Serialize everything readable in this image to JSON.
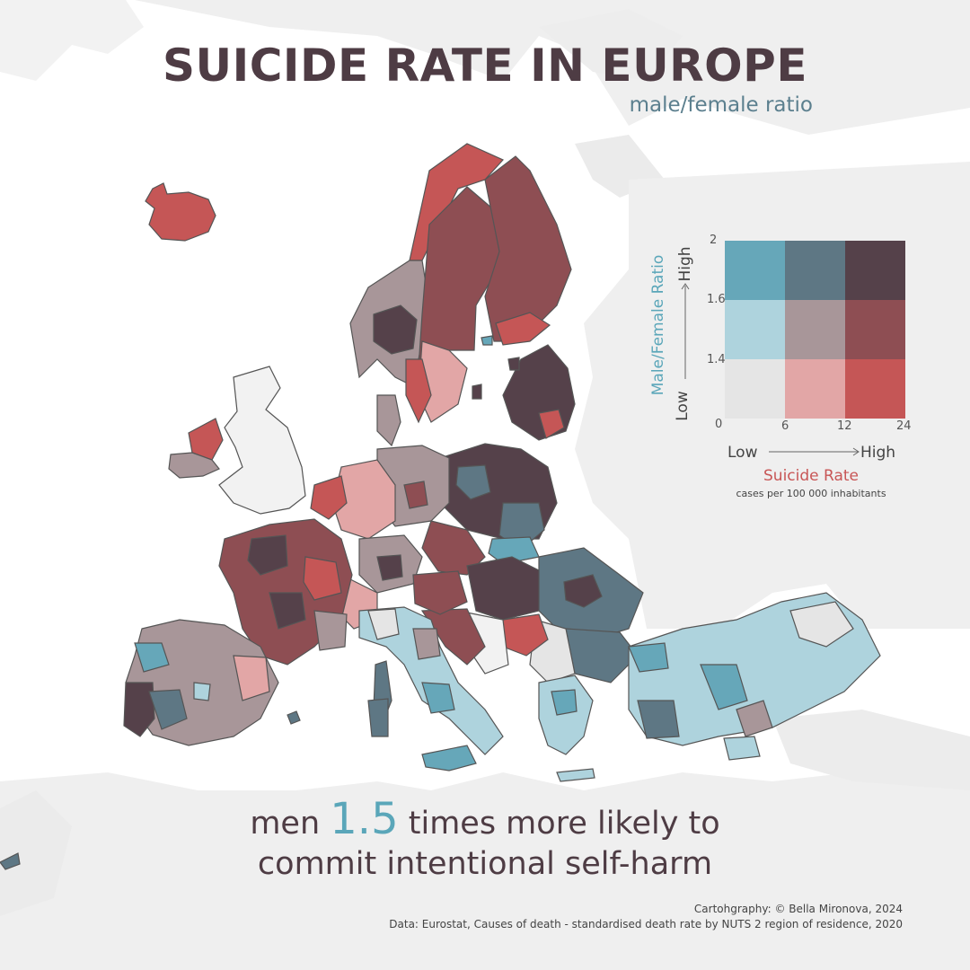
{
  "title": "SUICIDE RATE IN EUROPE",
  "subtitle": "male/female ratio",
  "legend": {
    "y_title": "Male/Female Ratio",
    "y_low": "Low",
    "y_high": "High",
    "y_ticks": [
      "0",
      "1.4",
      "1.6",
      "2"
    ],
    "x_title": "Suicide Rate",
    "x_units": "cases per 100 000 inhabitants",
    "x_low": "Low",
    "x_high": "High",
    "x_ticks": [
      "0",
      "6",
      "12",
      "24"
    ],
    "colors": [
      [
        "#e5e5e5",
        "#e2a6a6",
        "#c55656"
      ],
      [
        "#aed3dd",
        "#a89699",
        "#8e4e53"
      ],
      [
        "#66a7b9",
        "#5e7784",
        "#55414a"
      ]
    ]
  },
  "headline": {
    "prefix": "men",
    "number": "1.5",
    "line1_rest": "times more likely to",
    "line2": "commit intentional self-harm"
  },
  "credits": {
    "line1": "Cartohgraphy: © Bella Mironova, 2024",
    "line2": "Data: Eurostat, Causes of death - standardised death rate by NUTS 2 region of residence, 2020"
  },
  "map_colors": {
    "background": "#ffffff",
    "land_context": "#eeeeee",
    "border": "#555555"
  }
}
